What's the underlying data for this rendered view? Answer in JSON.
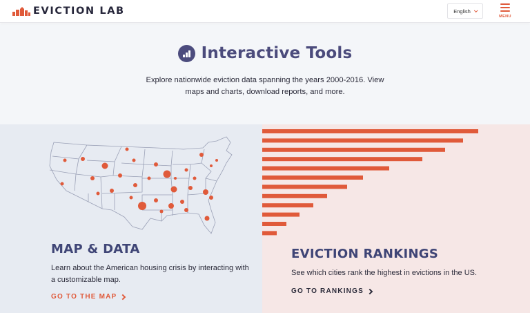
{
  "header": {
    "logo_text": "EVICTION LAB",
    "language": "English",
    "menu_label": "MENU"
  },
  "hero": {
    "title": "Interactive Tools",
    "description": "Explore nationwide eviction data spanning the years 2000-2016. View maps and charts, download reports, and more."
  },
  "cards": {
    "map": {
      "title": "MAP & DATA",
      "description": "Learn about the American housing crisis by interacting with a customizable map.",
      "link": "GO TO THE MAP"
    },
    "rankings": {
      "title": "EVICTION RANKINGS",
      "description": "See which cities rank the highest in evictions in the US.",
      "link": "GO TO RANKINGS"
    }
  },
  "colors": {
    "accent": "#e05a3a",
    "brand": "#4b4b7c",
    "text": "#2b2b3a"
  },
  "rankings_decor": {
    "bar_values": [
      313,
      291,
      265,
      232,
      184,
      146,
      123,
      94,
      74,
      54,
      35,
      21
    ]
  }
}
